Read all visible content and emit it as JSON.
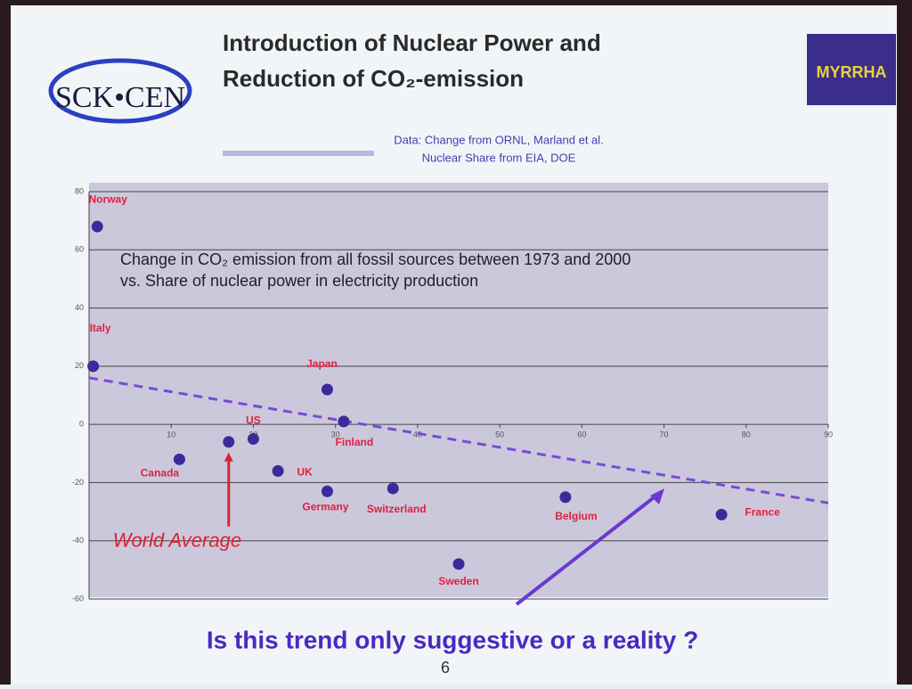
{
  "header": {
    "title_line1": "Introduction of Nuclear Power and",
    "title_line2": "Reduction of CO₂-emission",
    "logo_left": "SCK•CEN",
    "logo_right": "MYRRHA",
    "source_line1": "Data: Change from ORNL, Marland et al.",
    "source_line2": "Nuclear Share from EIA, DOE"
  },
  "chart_data": {
    "type": "scatter",
    "title_line1": "Change in CO₂ emission from all fossil sources between 1973 and 2000",
    "title_line2": "vs. Share of nuclear power in electricity production",
    "labels": [
      "Norway",
      "Italy",
      "Japan",
      "Finland",
      "US",
      "UK",
      "Canada",
      "Germany",
      "Switzerland",
      "Sweden",
      "Belgium",
      "France"
    ],
    "x": [
      1,
      0.5,
      29,
      31,
      20,
      23,
      11,
      29,
      37,
      45,
      58,
      77
    ],
    "values": [
      68,
      20,
      12,
      1,
      -5,
      -16,
      -12,
      -23,
      -22,
      -48,
      -25,
      -31
    ],
    "color": "#3a2a9a",
    "xlim": [
      0,
      90
    ],
    "xticks": [
      10,
      20,
      30,
      40,
      50,
      60,
      70,
      80,
      90
    ],
    "ylim": [
      -60,
      80
    ],
    "yticks": [
      -60,
      -40,
      -20,
      0,
      20,
      40,
      60,
      80
    ],
    "grid": true,
    "trend": {
      "x": [
        0,
        90
      ],
      "values": [
        16,
        -27
      ],
      "color": "#7a4ad8"
    },
    "annotation": {
      "text": "World Average",
      "x": 17,
      "value": -6
    }
  },
  "footer": {
    "question": "Is this trend only suggestive or a reality ?",
    "page": "6"
  }
}
